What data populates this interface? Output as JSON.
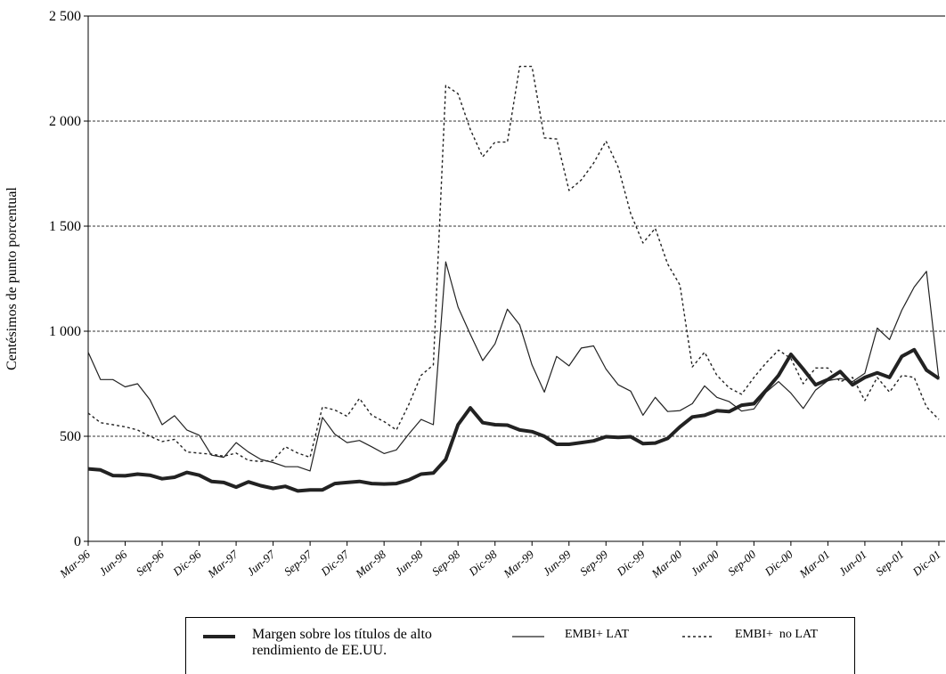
{
  "chart_data": {
    "type": "line",
    "y_label": "Centésimos de punto porcentual",
    "categories": [
      "Mar-96",
      null,
      null,
      "Jun-96",
      null,
      null,
      "Sep-96",
      null,
      null,
      "Dic-96",
      null,
      null,
      "Mar-97",
      null,
      null,
      "Jun-97",
      null,
      null,
      "Sep-97",
      null,
      null,
      "Dic-97",
      null,
      null,
      "Mar-98",
      null,
      null,
      "Jun-98",
      null,
      null,
      "Sep-98",
      null,
      null,
      "Dic-98",
      null,
      null,
      "Mar-99",
      null,
      null,
      "Jun-99",
      null,
      null,
      "Sep-99",
      null,
      null,
      "Dic-99",
      null,
      null,
      "Mar-00",
      null,
      null,
      "Jun-00",
      null,
      null,
      "Sep-00",
      null,
      null,
      "Dic-00",
      null,
      null,
      "Mar-01",
      null,
      null,
      "Jun-01",
      null,
      null,
      "Sep-01",
      null,
      null,
      "Dic-01"
    ],
    "series": [
      {
        "name": "Margen sobre los títulos de alto rendimiento de EE.UU.",
        "color": "#222222",
        "linewidth": 4,
        "linestyle": "solid",
        "values": [
          345,
          340,
          313,
          312,
          320,
          315,
          298,
          305,
          328,
          315,
          285,
          280,
          258,
          283,
          265,
          252,
          262,
          240,
          245,
          245,
          275,
          280,
          285,
          275,
          273,
          275,
          292,
          320,
          325,
          390,
          555,
          635,
          565,
          555,
          553,
          530,
          522,
          500,
          462,
          462,
          470,
          478,
          498,
          495,
          498,
          465,
          468,
          490,
          545,
          592,
          600,
          622,
          618,
          648,
          655,
          720,
          790,
          890,
          820,
          745,
          770,
          808,
          745,
          780,
          802,
          780,
          880,
          912,
          815,
          775
        ]
      },
      {
        "name": "EMBI+ LAT",
        "color": "#222222",
        "linewidth": 1.2,
        "linestyle": "solid",
        "values": [
          900,
          770,
          770,
          735,
          750,
          675,
          555,
          598,
          530,
          505,
          410,
          400,
          470,
          425,
          390,
          375,
          355,
          355,
          335,
          590,
          510,
          470,
          480,
          450,
          418,
          435,
          510,
          580,
          555,
          1330,
          1115,
          985,
          860,
          940,
          1105,
          1030,
          840,
          710,
          880,
          835,
          920,
          930,
          820,
          745,
          715,
          600,
          685,
          618,
          622,
          655,
          740,
          685,
          665,
          620,
          630,
          710,
          760,
          705,
          632,
          720,
          765,
          775,
          760,
          800,
          1015,
          960,
          1100,
          1210,
          1285,
          770
        ]
      },
      {
        "name": "EMBI+  no LAT",
        "color": "#222222",
        "linewidth": 1.4,
        "linestyle": "dotted",
        "values": [
          610,
          565,
          555,
          545,
          530,
          500,
          475,
          485,
          425,
          420,
          415,
          405,
          420,
          385,
          380,
          385,
          450,
          420,
          400,
          640,
          625,
          595,
          680,
          600,
          570,
          530,
          650,
          790,
          840,
          2170,
          2130,
          1960,
          1830,
          1900,
          1900,
          2260,
          2260,
          1920,
          1915,
          1670,
          1720,
          1800,
          1905,
          1780,
          1560,
          1420,
          1490,
          1320,
          1220,
          830,
          900,
          790,
          730,
          700,
          780,
          850,
          910,
          870,
          750,
          825,
          825,
          760,
          780,
          670,
          780,
          710,
          790,
          780,
          640,
          580
        ]
      }
    ],
    "ylim": [
      0,
      2500
    ],
    "yticks": [
      0,
      500,
      {
        "value": 1000,
        "label": "1 000"
      },
      {
        "value": 1500,
        "label": "1 500"
      },
      {
        "value": 2000,
        "label": "2 000"
      },
      {
        "value": 2500,
        "label": "2 500"
      }
    ],
    "grid": true
  }
}
